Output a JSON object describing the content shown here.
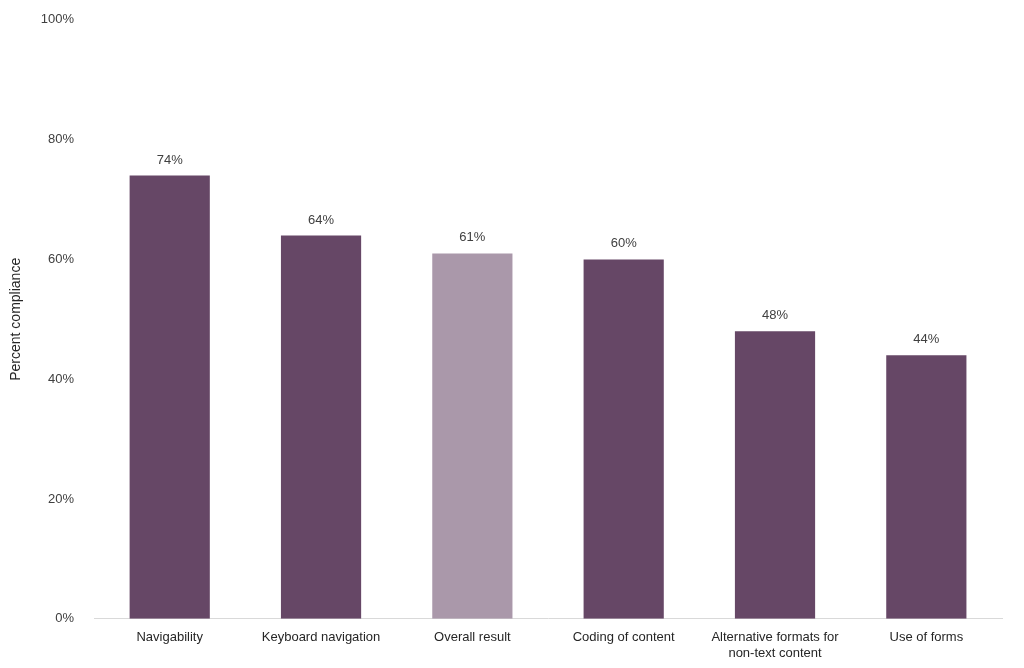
{
  "chart_data": {
    "type": "bar",
    "y_label": "Percent compliance",
    "categories": [
      "Navigability",
      "Keyboard navigation",
      "Overall result",
      "Coding of content",
      "Alternative formats for non-text content",
      "Use of forms"
    ],
    "values": [
      74,
      64,
      61,
      60,
      48,
      44
    ],
    "value_labels": [
      "74%",
      "64%",
      "61%",
      "60%",
      "48%",
      "44%"
    ],
    "colors": [
      "#664766",
      "#664766",
      "#aa98aa",
      "#664766",
      "#664766",
      "#664766"
    ],
    "ylim": [
      0,
      100
    ],
    "yticks": [
      {
        "value": 0,
        "label": "0%"
      },
      {
        "value": 20,
        "label": "20%"
      },
      {
        "value": 40,
        "label": "40%"
      },
      {
        "value": 60,
        "label": "60%"
      },
      {
        "value": 80,
        "label": "80%"
      },
      {
        "value": 100,
        "label": "100%"
      }
    ],
    "grid": false,
    "data_labels": true
  }
}
